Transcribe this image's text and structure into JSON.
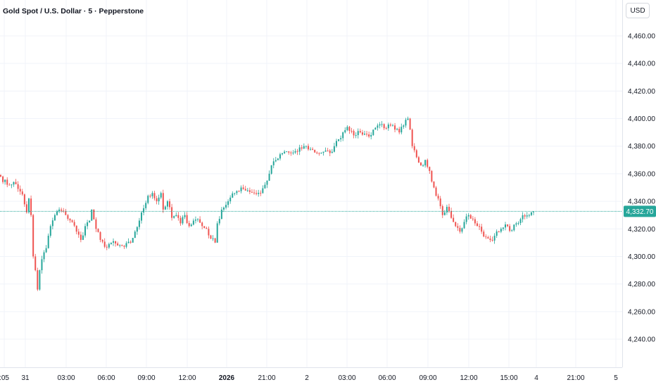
{
  "chart_data": {
    "type": "candlestick",
    "title": "Gold Spot / U.S. Dollar · 5 · Pepperstone",
    "currency": "USD",
    "last_price": 4332.7,
    "last_price_label": "4,332.70",
    "ylim": [
      4225,
      4472
    ],
    "y_ticks": [
      {
        "value": 4460,
        "label": "4,460.00"
      },
      {
        "value": 4440,
        "label": "4,440.00"
      },
      {
        "value": 4420,
        "label": "4,420.00"
      },
      {
        "value": 4400,
        "label": "4,400.00"
      },
      {
        "value": 4380,
        "label": "4,380.00"
      },
      {
        "value": 4360,
        "label": "4,360.00"
      },
      {
        "value": 4340,
        "label": "4,340.00"
      },
      {
        "value": 4320,
        "label": "4,320.00"
      },
      {
        "value": 4300,
        "label": "4,300.00"
      },
      {
        "value": 4280,
        "label": "4,280.00"
      },
      {
        "value": 4260,
        "label": "4,260.00"
      },
      {
        "value": 4240,
        "label": "4,240.00"
      }
    ],
    "x_ticks": [
      {
        "label": ":05",
        "bold": false
      },
      {
        "label": "31",
        "bold": false
      },
      {
        "label": "03:00",
        "bold": false
      },
      {
        "label": "06:00",
        "bold": false
      },
      {
        "label": "09:00",
        "bold": false
      },
      {
        "label": "12:00",
        "bold": false
      },
      {
        "label": "2026",
        "bold": true
      },
      {
        "label": "21:00",
        "bold": false
      },
      {
        "label": "2",
        "bold": false
      },
      {
        "label": "03:00",
        "bold": false
      },
      {
        "label": "06:00",
        "bold": false
      },
      {
        "label": "09:00",
        "bold": false
      },
      {
        "label": "12:00",
        "bold": false
      },
      {
        "label": "15:00",
        "bold": false
      },
      {
        "label": "4",
        "bold": false
      },
      {
        "label": "21:00",
        "bold": false
      },
      {
        "label": "5",
        "bold": false
      }
    ],
    "colors": {
      "up": "#26a69a",
      "down": "#ef5350",
      "price_line": "#26a69a",
      "grid": "#f0f3fa"
    },
    "anchors": [
      [
        0,
        4358
      ],
      [
        3,
        4352
      ],
      [
        6,
        4354
      ],
      [
        8,
        4349
      ],
      [
        10,
        4345
      ],
      [
        12,
        4332
      ],
      [
        13,
        4342
      ],
      [
        14,
        4330
      ],
      [
        15,
        4300
      ],
      [
        16,
        4290
      ],
      [
        17,
        4276
      ],
      [
        18,
        4290
      ],
      [
        19,
        4298
      ],
      [
        21,
        4306
      ],
      [
        23,
        4322
      ],
      [
        25,
        4330
      ],
      [
        27,
        4334
      ],
      [
        30,
        4330
      ],
      [
        33,
        4325
      ],
      [
        35,
        4318
      ],
      [
        37,
        4312
      ],
      [
        39,
        4322
      ],
      [
        41,
        4326
      ],
      [
        42,
        4334
      ],
      [
        44,
        4320
      ],
      [
        46,
        4312
      ],
      [
        48,
        4307
      ],
      [
        51,
        4310
      ],
      [
        54,
        4308
      ],
      [
        57,
        4307
      ],
      [
        60,
        4310
      ],
      [
        62,
        4318
      ],
      [
        64,
        4326
      ],
      [
        66,
        4335
      ],
      [
        68,
        4344
      ],
      [
        70,
        4346
      ],
      [
        72,
        4340
      ],
      [
        74,
        4346
      ],
      [
        75,
        4334
      ],
      [
        77,
        4340
      ],
      [
        79,
        4328
      ],
      [
        81,
        4330
      ],
      [
        83,
        4324
      ],
      [
        85,
        4330
      ],
      [
        87,
        4322
      ],
      [
        89,
        4326
      ],
      [
        91,
        4327
      ],
      [
        93,
        4322
      ],
      [
        95,
        4320
      ],
      [
        97,
        4313
      ],
      [
        99,
        4310
      ],
      [
        100,
        4324
      ],
      [
        102,
        4334
      ],
      [
        105,
        4340
      ],
      [
        108,
        4346
      ],
      [
        111,
        4350
      ],
      [
        114,
        4348
      ],
      [
        117,
        4346
      ],
      [
        120,
        4346
      ],
      [
        122,
        4352
      ],
      [
        124,
        4360
      ],
      [
        126,
        4369
      ],
      [
        128,
        4371
      ],
      [
        131,
        4376
      ],
      [
        134,
        4375
      ],
      [
        137,
        4376
      ],
      [
        140,
        4380
      ],
      [
        143,
        4378
      ],
      [
        146,
        4375
      ],
      [
        149,
        4376
      ],
      [
        152,
        4375
      ],
      [
        154,
        4380
      ],
      [
        156,
        4385
      ],
      [
        158,
        4390
      ],
      [
        160,
        4394
      ],
      [
        162,
        4391
      ],
      [
        164,
        4388
      ],
      [
        166,
        4390
      ],
      [
        168,
        4389
      ],
      [
        170,
        4387
      ],
      [
        172,
        4392
      ],
      [
        174,
        4395
      ],
      [
        176,
        4396
      ],
      [
        178,
        4393
      ],
      [
        180,
        4395
      ],
      [
        182,
        4392
      ],
      [
        184,
        4390
      ],
      [
        186,
        4395
      ],
      [
        188,
        4400
      ],
      [
        189,
        4392
      ],
      [
        190,
        4380
      ],
      [
        192,
        4372
      ],
      [
        194,
        4366
      ],
      [
        196,
        4370
      ],
      [
        198,
        4362
      ],
      [
        200,
        4350
      ],
      [
        202,
        4342
      ],
      [
        204,
        4330
      ],
      [
        206,
        4336
      ],
      [
        208,
        4328
      ],
      [
        210,
        4322
      ],
      [
        212,
        4318
      ],
      [
        214,
        4325
      ],
      [
        216,
        4330
      ],
      [
        218,
        4327
      ],
      [
        220,
        4322
      ],
      [
        222,
        4318
      ],
      [
        224,
        4314
      ],
      [
        226,
        4312
      ],
      [
        228,
        4315
      ],
      [
        230,
        4318
      ],
      [
        232,
        4321
      ],
      [
        234,
        4322
      ],
      [
        236,
        4319
      ],
      [
        238,
        4324
      ],
      [
        240,
        4327
      ],
      [
        242,
        4329
      ],
      [
        244,
        4330
      ],
      [
        246,
        4332.7
      ]
    ]
  }
}
